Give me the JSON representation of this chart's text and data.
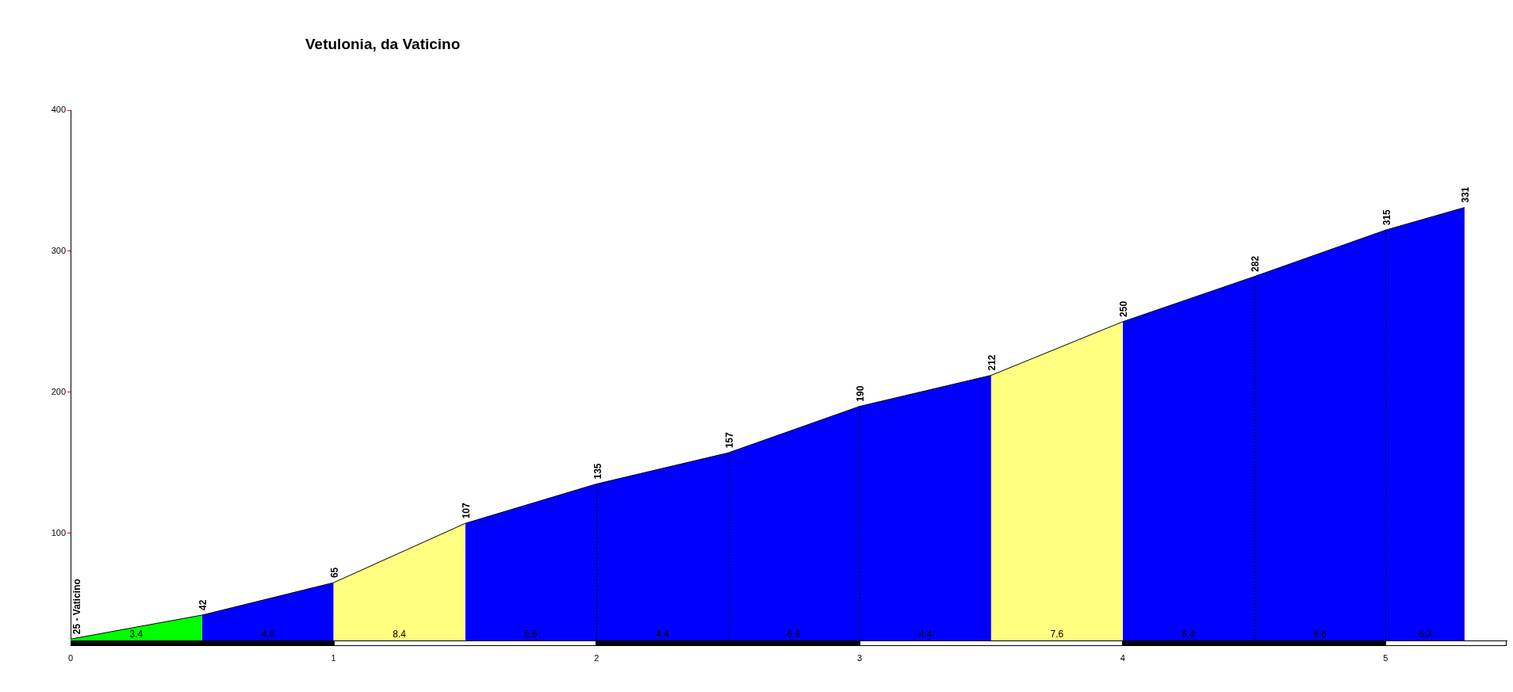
{
  "chart_data": {
    "type": "area",
    "title": "Vetulonia, da Vaticino",
    "series": [
      {
        "color": "#00ff00",
        "x": [
          0,
          0.5
        ],
        "values": [
          25,
          42
        ],
        "value_labels": [
          "25 - Vaticino",
          "42"
        ]
      },
      {
        "color": "#0000ff",
        "x": [
          0.5,
          1
        ],
        "values": [
          42,
          65
        ],
        "value_labels": [
          null,
          "65"
        ]
      },
      {
        "color": "#ffff80",
        "x": [
          1,
          1.5
        ],
        "values": [
          65,
          107
        ],
        "value_labels": [
          null,
          "107"
        ]
      },
      {
        "color": "#0000ff",
        "x": [
          1.5,
          2,
          2.5,
          3,
          3.5
        ],
        "values": [
          107,
          135,
          157,
          190,
          212
        ],
        "value_labels": [
          null,
          "135",
          "157",
          "190",
          "212"
        ]
      },
      {
        "color": "#ffff80",
        "x": [
          3.5,
          4
        ],
        "values": [
          212,
          250
        ],
        "value_labels": [
          null,
          "250"
        ]
      },
      {
        "color": "#0000ff",
        "x": [
          4,
          4.5,
          5,
          5.3
        ],
        "values": [
          250,
          282,
          315,
          331
        ],
        "value_labels": [
          null,
          "282",
          "315",
          "331"
        ]
      }
    ],
    "annotations": [
      "3.4",
      "4.6",
      "8.4",
      "5.6",
      "4.4",
      "6.6",
      "4.4",
      "7.6",
      "6.4",
      "6.6",
      "5.3"
    ],
    "xlim": [
      0,
      5.46
    ],
    "xticks": [
      0,
      1,
      2,
      3,
      4,
      5
    ],
    "ylim": [
      24,
      400
    ],
    "yticks": [
      100,
      200,
      300,
      400
    ],
    "legend": false
  }
}
